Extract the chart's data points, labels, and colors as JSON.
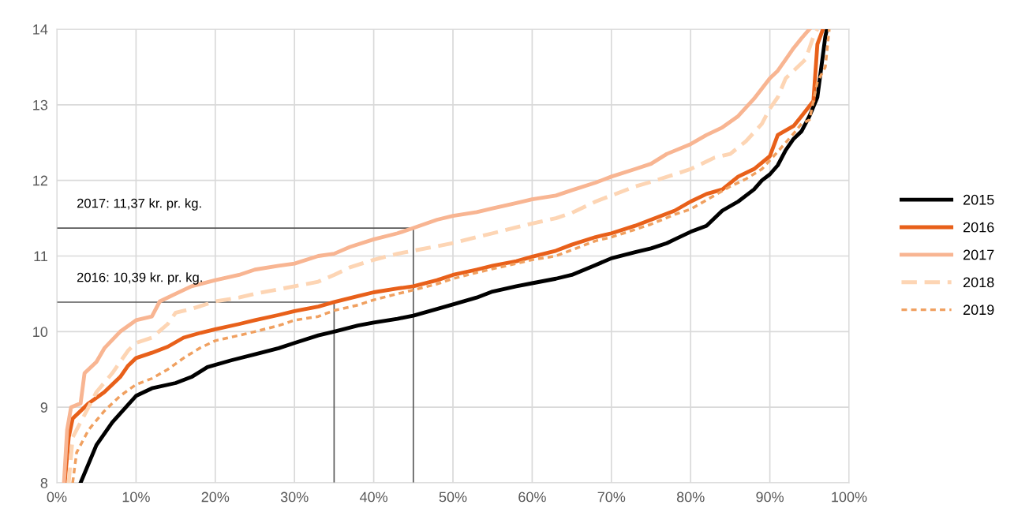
{
  "chart_data": {
    "type": "line",
    "xlim": [
      0,
      100
    ],
    "xticks": [
      {
        "value": 0,
        "label": "0%"
      },
      {
        "value": 10,
        "label": "10%"
      },
      {
        "value": 20,
        "label": "20%"
      },
      {
        "value": 30,
        "label": "30%"
      },
      {
        "value": 40,
        "label": "40%"
      },
      {
        "value": 50,
        "label": "50%"
      },
      {
        "value": 60,
        "label": "60%"
      },
      {
        "value": 70,
        "label": "70%"
      },
      {
        "value": 80,
        "label": "80%"
      },
      {
        "value": 90,
        "label": "90%"
      },
      {
        "value": 100,
        "label": "100%"
      }
    ],
    "ylim": [
      8,
      14
    ],
    "yticks": [
      8,
      9,
      10,
      11,
      12,
      13,
      14
    ],
    "grid": true,
    "legend": "right",
    "marker": "none",
    "series": [
      {
        "name": "2015",
        "color": "#000000",
        "line_style": "solid",
        "x": [
          3,
          5,
          7,
          10,
          12,
          15,
          17,
          19,
          22,
          25,
          28,
          30,
          33,
          35,
          38,
          40,
          43,
          45,
          48,
          50,
          53,
          55,
          58,
          60,
          63,
          65,
          68,
          70,
          73,
          75,
          77,
          78,
          80,
          82,
          84,
          86,
          88,
          89,
          90,
          91,
          92,
          93,
          94,
          95,
          96,
          96.5,
          97,
          97.2
        ],
        "values": [
          8,
          8.5,
          8.8,
          9.15,
          9.25,
          9.32,
          9.4,
          9.53,
          9.62,
          9.7,
          9.78,
          9.85,
          9.95,
          10.0,
          10.08,
          10.12,
          10.17,
          10.21,
          10.3,
          10.36,
          10.45,
          10.53,
          10.6,
          10.64,
          10.7,
          10.75,
          10.88,
          10.97,
          11.05,
          11.1,
          11.17,
          11.22,
          11.32,
          11.4,
          11.6,
          11.72,
          11.88,
          12.0,
          12.08,
          12.2,
          12.4,
          12.55,
          12.65,
          12.85,
          13.1,
          13.5,
          13.9,
          14
        ]
      },
      {
        "name": "2016",
        "color": "#e8601a",
        "line_style": "solid",
        "x": [
          1,
          1.5,
          2,
          4,
          6,
          8,
          9,
          10,
          12,
          14,
          16,
          18,
          20,
          23,
          25,
          28,
          30,
          33,
          35,
          38,
          40,
          43,
          45,
          48,
          50,
          53,
          55,
          58,
          60,
          63,
          65,
          68,
          70,
          73,
          75,
          78,
          80,
          82,
          84,
          86,
          88,
          90,
          91,
          93,
          94,
          95.5,
          96,
          96.7
        ],
        "values": [
          8,
          8.6,
          8.85,
          9.05,
          9.2,
          9.4,
          9.55,
          9.65,
          9.72,
          9.8,
          9.92,
          9.98,
          10.03,
          10.1,
          10.15,
          10.22,
          10.27,
          10.33,
          10.39,
          10.47,
          10.52,
          10.57,
          10.6,
          10.68,
          10.75,
          10.82,
          10.87,
          10.93,
          10.99,
          11.07,
          11.15,
          11.25,
          11.3,
          11.4,
          11.48,
          11.6,
          11.72,
          11.82,
          11.88,
          12.05,
          12.15,
          12.32,
          12.6,
          12.72,
          12.85,
          13.05,
          13.8,
          14
        ]
      },
      {
        "name": "2017",
        "color": "#f8b592",
        "line_style": "solid",
        "x": [
          0.9,
          1.3,
          1.8,
          3,
          3.5,
          5,
          6,
          8,
          10,
          12,
          13,
          15,
          17,
          20,
          23,
          25,
          28,
          30,
          33,
          35,
          37,
          40,
          43,
          45,
          48,
          50,
          53,
          55,
          58,
          60,
          63,
          65,
          68,
          70,
          73,
          75,
          77,
          80,
          82,
          84,
          86,
          88,
          90,
          91,
          92,
          93,
          94,
          95
        ],
        "values": [
          8,
          8.7,
          9.0,
          9.05,
          9.45,
          9.6,
          9.78,
          10.0,
          10.15,
          10.2,
          10.4,
          10.5,
          10.6,
          10.68,
          10.75,
          10.82,
          10.87,
          10.9,
          11.0,
          11.03,
          11.12,
          11.22,
          11.3,
          11.37,
          11.48,
          11.53,
          11.58,
          11.63,
          11.7,
          11.75,
          11.8,
          11.87,
          11.97,
          12.05,
          12.15,
          12.22,
          12.35,
          12.48,
          12.6,
          12.7,
          12.85,
          13.08,
          13.35,
          13.45,
          13.6,
          13.75,
          13.88,
          14
        ]
      },
      {
        "name": "2018",
        "color": "#fdd5b4",
        "line_style": "dashed",
        "x": [
          1.5,
          2,
          3,
          5,
          7,
          9,
          10,
          12,
          14,
          15,
          17,
          20,
          23,
          25,
          28,
          30,
          33,
          35,
          37,
          40,
          43,
          45,
          48,
          50,
          53,
          55,
          58,
          60,
          63,
          65,
          68,
          70,
          73,
          75,
          78,
          80,
          83,
          85,
          87,
          89,
          90,
          91,
          92,
          93,
          94.5,
          95.5,
          96
        ],
        "values": [
          8,
          8.6,
          8.8,
          9.2,
          9.45,
          9.75,
          9.85,
          9.92,
          10.1,
          10.25,
          10.3,
          10.4,
          10.45,
          10.5,
          10.56,
          10.6,
          10.66,
          10.75,
          10.85,
          10.95,
          11.03,
          11.07,
          11.13,
          11.17,
          11.25,
          11.3,
          11.38,
          11.43,
          11.5,
          11.57,
          11.72,
          11.8,
          11.92,
          11.98,
          12.08,
          12.15,
          12.3,
          12.35,
          12.52,
          12.75,
          12.95,
          13.1,
          13.35,
          13.45,
          13.6,
          13.9,
          14
        ]
      },
      {
        "name": "2019",
        "color": "#f0a060",
        "line_style": "dotted",
        "x": [
          2,
          2.5,
          4,
          6,
          8,
          10,
          12,
          14,
          16,
          18,
          20,
          23,
          25,
          28,
          30,
          33,
          35,
          38,
          40,
          43,
          45,
          48,
          50,
          53,
          55,
          58,
          60,
          63,
          65,
          68,
          70,
          73,
          75,
          78,
          80,
          83,
          85,
          87,
          89,
          91,
          93,
          94,
          95,
          96,
          97,
          97.5
        ],
        "values": [
          8,
          8.4,
          8.7,
          8.95,
          9.15,
          9.3,
          9.38,
          9.5,
          9.65,
          9.78,
          9.88,
          9.95,
          10.0,
          10.08,
          10.15,
          10.2,
          10.28,
          10.35,
          10.42,
          10.5,
          10.55,
          10.63,
          10.7,
          10.78,
          10.83,
          10.9,
          10.95,
          11.0,
          11.08,
          11.2,
          11.25,
          11.35,
          11.42,
          11.55,
          11.62,
          11.8,
          11.92,
          12.02,
          12.15,
          12.38,
          12.62,
          12.75,
          12.8,
          13.3,
          13.5,
          14
        ]
      },
      {
        "color": "#595959",
        "line_style": "solid",
        "x": [
          0,
          45,
          45
        ],
        "values": [
          11.37,
          11.37,
          8
        ]
      },
      {
        "color": "#595959",
        "line_style": "solid",
        "x": [
          0,
          35,
          35
        ],
        "values": [
          10.39,
          10.39,
          8
        ]
      }
    ],
    "annotations": [
      "2017: 11,37 kr. pr. kg.",
      "2016: 10,39 kr. pr. kg."
    ]
  }
}
